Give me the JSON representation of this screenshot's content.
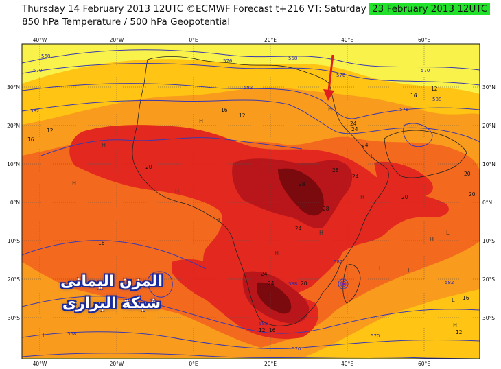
{
  "header": {
    "title_line1": "Thursday 14 February 2013 12UTC ©ECMWF Forecast t+216 VT: Saturday",
    "valid_time": "23 February 2013 12UTC",
    "title_line2": "850 hPa Temperature / 500 hPa Geopotential"
  },
  "colors": {
    "vt_highlight": "#22e12a",
    "temp_lt_12": "#f8f24a",
    "temp_12_16": "#ffc414",
    "temp_16_20": "#f99b1c",
    "temp_20_24": "#f36a1f",
    "temp_24_28": "#e3281f",
    "temp_28_32": "#b8161a",
    "temp_gt_32": "#7a0a0e",
    "geopotential_contour": "#3a3ab0",
    "arrow": "#e11d1d"
  },
  "axes": {
    "lon_labels": [
      "40°W",
      "20°W",
      "0°E",
      "20°E",
      "40°E",
      "60°E"
    ],
    "lat_labels": [
      "30°N",
      "20°N",
      "10°N",
      "0°N",
      "10°S",
      "20°S",
      "30°S"
    ]
  },
  "temperature_labels": [
    "16",
    "12",
    "16",
    "12",
    "20",
    "16",
    "20",
    "24",
    "28",
    "24",
    "28",
    "24",
    "20",
    "20",
    "24",
    "20",
    "24",
    "16",
    "12",
    "16",
    "12",
    "24",
    "12",
    "16",
    "28",
    "24"
  ],
  "geopotential_labels": [
    "568",
    "570",
    "582",
    "576",
    "582",
    "570",
    "576",
    "588",
    "582",
    "582",
    "582",
    "588",
    "576",
    "570",
    "568",
    "568",
    "570"
  ],
  "pressure_marks": [
    "H",
    "H",
    "H",
    "H",
    "H",
    "H",
    "L",
    "L",
    "L",
    "L",
    "L",
    "H",
    "H",
    "L",
    "H",
    "H",
    "L",
    "L",
    "L"
  ],
  "watermark": {
    "line1": "المزن اليمانى",
    "line2": "شبكة البرارى"
  },
  "icons": [
    "annotation-arrow-icon",
    "low-pressure-vortex-icon"
  ]
}
